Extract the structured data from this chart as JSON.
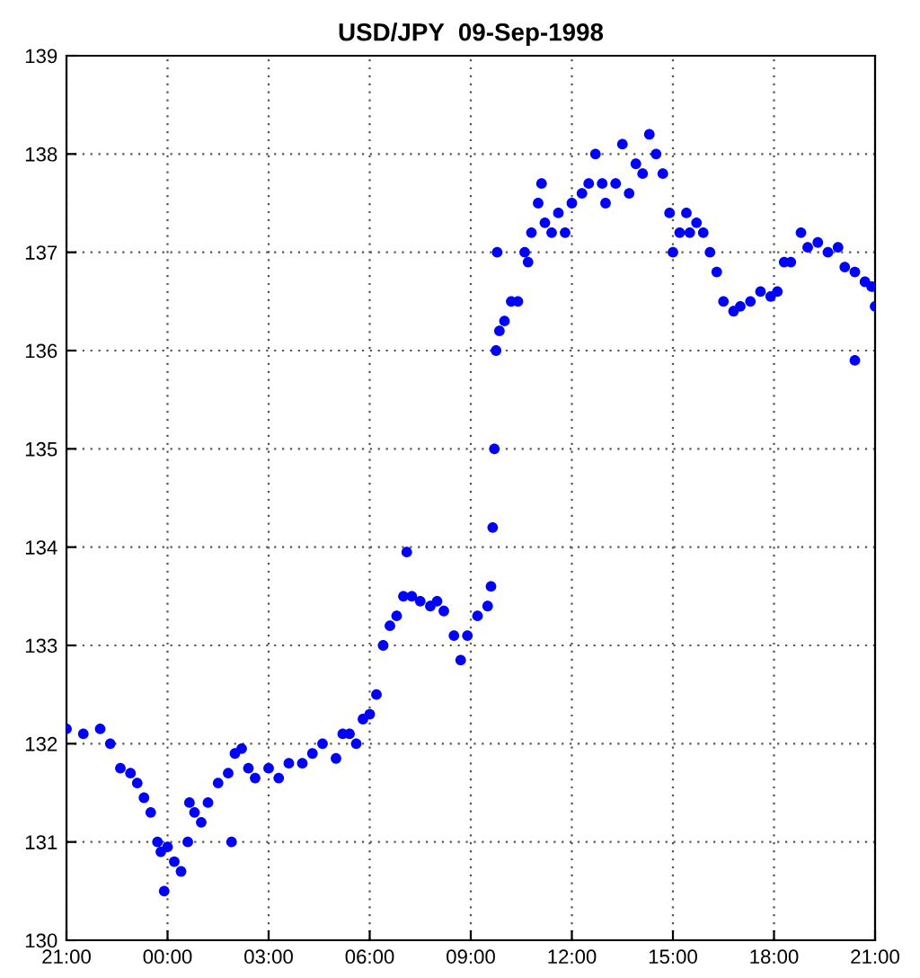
{
  "chart_data": {
    "type": "scatter",
    "title": "USD/JPY  09-Sep-1998",
    "x": [
      "1998-09-08T21:00",
      "1998-09-08T21:30",
      "1998-09-08T22:00",
      "1998-09-08T22:18",
      "1998-09-08T22:36",
      "1998-09-08T22:54",
      "1998-09-08T23:06",
      "1998-09-08T23:18",
      "1998-09-08T23:30",
      "1998-09-08T23:42",
      "1998-09-08T23:48",
      "1998-09-08T23:54",
      "1998-09-09T00:00",
      "1998-09-09T00:12",
      "1998-09-09T00:24",
      "1998-09-09T00:36",
      "1998-09-09T00:48",
      "1998-09-09T01:00",
      "1998-09-09T01:12",
      "1998-09-09T01:30",
      "1998-09-09T01:48",
      "1998-09-09T02:00",
      "1998-09-09T02:12",
      "1998-09-09T02:24",
      "1998-09-09T02:36",
      "1998-09-09T03:00",
      "1998-09-09T03:18",
      "1998-09-09T03:36",
      "1998-09-09T04:00",
      "1998-09-09T04:18",
      "1998-09-09T04:36",
      "1998-09-09T05:00",
      "1998-09-09T05:12",
      "1998-09-09T05:24",
      "1998-09-09T05:36",
      "1998-09-09T05:48",
      "1998-09-09T06:00",
      "1998-09-09T06:12",
      "1998-09-09T06:24",
      "1998-09-09T06:36",
      "1998-09-09T06:48",
      "1998-09-09T07:00",
      "1998-09-09T07:06",
      "1998-09-09T07:15",
      "1998-09-09T07:30",
      "1998-09-09T07:48",
      "1998-09-09T08:00",
      "1998-09-09T08:12",
      "1998-09-09T08:30",
      "1998-09-09T08:42",
      "1998-09-09T08:54",
      "1998-09-09T09:12",
      "1998-09-09T09:30",
      "1998-09-09T09:36",
      "1998-09-09T09:39",
      "1998-09-09T09:42",
      "1998-09-09T09:45",
      "1998-09-09T09:47",
      "1998-09-09T09:51",
      "1998-09-09T10:00",
      "1998-09-09T10:12",
      "1998-09-09T10:24",
      "1998-09-09T10:36",
      "1998-09-09T10:42",
      "1998-09-09T10:48",
      "1998-09-09T11:00",
      "1998-09-09T11:06",
      "1998-09-09T11:12",
      "1998-09-09T11:24",
      "1998-09-09T11:36",
      "1998-09-09T11:48",
      "1998-09-09T12:00",
      "1998-09-09T12:18",
      "1998-09-09T12:30",
      "1998-09-09T12:42",
      "1998-09-09T12:54",
      "1998-09-09T13:00",
      "1998-09-09T13:18",
      "1998-09-09T13:30",
      "1998-09-09T13:42",
      "1998-09-09T13:54",
      "1998-09-09T14:06",
      "1998-09-09T14:18",
      "1998-09-09T14:30",
      "1998-09-09T14:42",
      "1998-09-09T14:54",
      "1998-09-09T15:00",
      "1998-09-09T15:12",
      "1998-09-09T15:24",
      "1998-09-09T15:30",
      "1998-09-09T15:42",
      "1998-09-09T15:54",
      "1998-09-09T16:06",
      "1998-09-09T16:18",
      "1998-09-09T16:30",
      "1998-09-09T16:48",
      "1998-09-09T17:00",
      "1998-09-09T17:18",
      "1998-09-09T17:36",
      "1998-09-09T17:54",
      "1998-09-09T18:06",
      "1998-09-09T18:18",
      "1998-09-09T18:30",
      "1998-09-09T18:48",
      "1998-09-09T19:00",
      "1998-09-09T19:18",
      "1998-09-09T19:36",
      "1998-09-09T19:54",
      "1998-09-09T20:06",
      "1998-09-09T20:24",
      "1998-09-09T20:42",
      "1998-09-09T20:54",
      "1998-09-09T21:00",
      "1998-09-09T01:54",
      "1998-09-09T00:39",
      "1998-09-09T20:24"
    ],
    "values": [
      132.15,
      132.1,
      132.15,
      132.0,
      131.75,
      131.7,
      131.6,
      131.45,
      131.3,
      131.0,
      130.9,
      130.5,
      130.95,
      130.8,
      130.7,
      131.0,
      131.3,
      131.2,
      131.4,
      131.6,
      131.7,
      131.9,
      131.95,
      131.75,
      131.65,
      131.75,
      131.65,
      131.8,
      131.8,
      131.9,
      132.0,
      131.85,
      132.1,
      132.1,
      132.0,
      132.25,
      132.3,
      132.5,
      133.0,
      133.2,
      133.3,
      133.5,
      133.95,
      133.5,
      133.45,
      133.4,
      133.45,
      133.35,
      133.1,
      132.85,
      133.1,
      133.3,
      133.4,
      133.6,
      134.2,
      135.0,
      136.0,
      137.0,
      136.2,
      136.3,
      136.5,
      136.5,
      137.0,
      136.9,
      137.2,
      137.5,
      137.7,
      137.3,
      137.2,
      137.4,
      137.2,
      137.5,
      137.6,
      137.7,
      138.0,
      137.7,
      137.5,
      137.7,
      138.1,
      137.6,
      137.9,
      137.8,
      138.2,
      138.0,
      137.8,
      137.4,
      137.0,
      137.2,
      137.4,
      137.2,
      137.3,
      137.2,
      137.0,
      136.8,
      136.5,
      136.4,
      136.45,
      136.5,
      136.6,
      136.55,
      136.6,
      136.9,
      136.9,
      137.2,
      137.05,
      137.1,
      137.0,
      137.05,
      136.85,
      136.8,
      136.7,
      136.65,
      136.45,
      131.0,
      131.4,
      135.9
    ],
    "color": "#0000ff",
    "marker": "circle",
    "grid": true,
    "xlim": [
      "1998-09-08T21:00",
      "1998-09-09T21:00"
    ],
    "xticks": [
      {
        "value": "1998-09-08T21:00",
        "label": "21:00"
      },
      {
        "value": "1998-09-09T00:00",
        "label": "00:00"
      },
      {
        "value": "1998-09-09T03:00",
        "label": "03:00"
      },
      {
        "value": "1998-09-09T06:00",
        "label": "06:00"
      },
      {
        "value": "1998-09-09T09:00",
        "label": "09:00"
      },
      {
        "value": "1998-09-09T12:00",
        "label": "12:00"
      },
      {
        "value": "1998-09-09T15:00",
        "label": "15:00"
      },
      {
        "value": "1998-09-09T18:00",
        "label": "18:00"
      },
      {
        "value": "1998-09-09T21:00",
        "label": "21:00"
      }
    ],
    "ylim": [
      130,
      139
    ],
    "yticks": [
      130,
      131,
      132,
      133,
      134,
      135,
      136,
      137,
      138,
      139
    ]
  }
}
